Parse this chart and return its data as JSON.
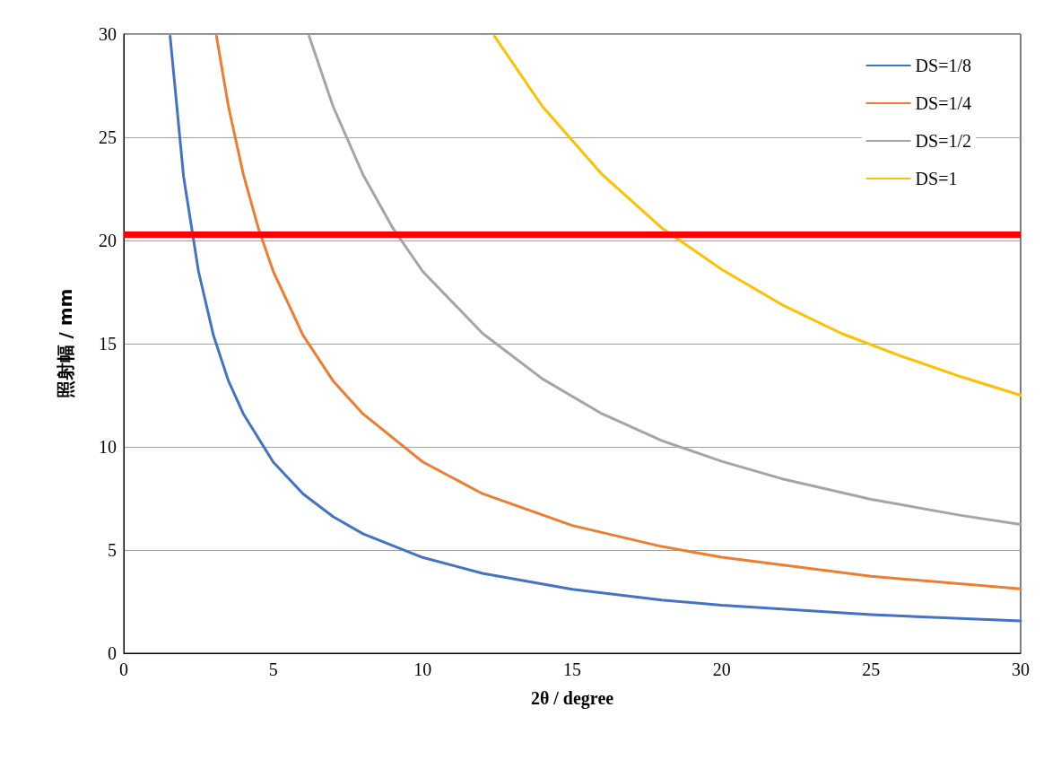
{
  "chart_data": {
    "type": "line",
    "xlabel": "2θ / degree",
    "ylabel": "照射幅 / mm",
    "xlim": [
      0,
      30
    ],
    "ylim": [
      0,
      30
    ],
    "xticks": [
      0,
      5,
      10,
      15,
      20,
      25,
      30
    ],
    "yticks": [
      0,
      5,
      10,
      15,
      20,
      25,
      30
    ],
    "grid": "y",
    "legend": "top right",
    "marker": "none",
    "line_style": "solid",
    "series": [
      {
        "name": "DS=1/8",
        "color": "#4472c4",
        "x": [
          1.55,
          2,
          2.5,
          3,
          3.5,
          4,
          5,
          6,
          7,
          8,
          10,
          12,
          15,
          18,
          20,
          25,
          30
        ],
        "values": [
          29.9,
          23.1,
          18.5,
          15.4,
          13.2,
          11.6,
          9.26,
          7.72,
          6.62,
          5.79,
          4.64,
          3.87,
          3.1,
          2.58,
          2.33,
          1.87,
          1.56
        ]
      },
      {
        "name": "DS=1/4",
        "color": "#ed7d31",
        "x": [
          3.1,
          3.5,
          4,
          4.5,
          5,
          6,
          7,
          8,
          10,
          12,
          15,
          18,
          20,
          25,
          30
        ],
        "values": [
          29.9,
          26.5,
          23.2,
          20.6,
          18.5,
          15.4,
          13.2,
          11.6,
          9.27,
          7.73,
          6.19,
          5.17,
          4.65,
          3.73,
          3.12
        ]
      },
      {
        "name": "DS=1/2",
        "color": "#a5a5a5",
        "x": [
          6.2,
          7,
          8,
          9,
          10,
          12,
          14,
          16,
          18,
          20,
          22,
          25,
          28,
          30
        ],
        "values": [
          29.9,
          26.5,
          23.2,
          20.6,
          18.5,
          15.5,
          13.3,
          11.6,
          10.3,
          9.3,
          8.46,
          7.46,
          6.68,
          6.24
        ]
      },
      {
        "name": "DS=1",
        "color": "#ffc000",
        "x": [
          12.4,
          14,
          16,
          18,
          20,
          22,
          24,
          26,
          28,
          30
        ],
        "values": [
          29.9,
          26.5,
          23.2,
          20.6,
          18.6,
          16.9,
          15.5,
          14.4,
          13.4,
          12.5
        ]
      }
    ],
    "ref_lines": [
      {
        "axis": "y",
        "value": 20.3,
        "color": "#ff0000",
        "line_style": "solid"
      }
    ]
  }
}
